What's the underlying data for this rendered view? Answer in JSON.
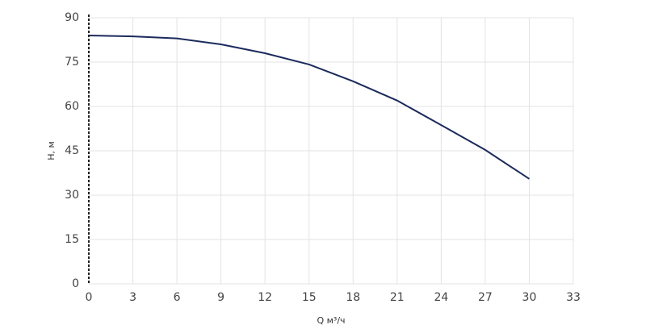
{
  "chart_data": {
    "type": "line",
    "x_label": "Q м³/ч",
    "y_label": "H, м",
    "x": [
      0,
      3,
      6,
      9,
      12,
      15,
      18,
      21,
      24,
      27,
      30
    ],
    "series": [
      {
        "name": "H",
        "color": "#1b2a5c",
        "values": [
          84,
          83.7,
          83,
          81,
          78,
          74.2,
          68.5,
          62,
          53.7,
          45.3,
          35.5
        ]
      }
    ],
    "xlim": [
      0,
      33
    ],
    "xticks": [
      0,
      3,
      6,
      9,
      12,
      15,
      18,
      21,
      24,
      27,
      30,
      33
    ],
    "ylim": [
      0,
      90
    ],
    "yticks": [
      0,
      15,
      30,
      45,
      60,
      75,
      90
    ],
    "grid": true
  }
}
